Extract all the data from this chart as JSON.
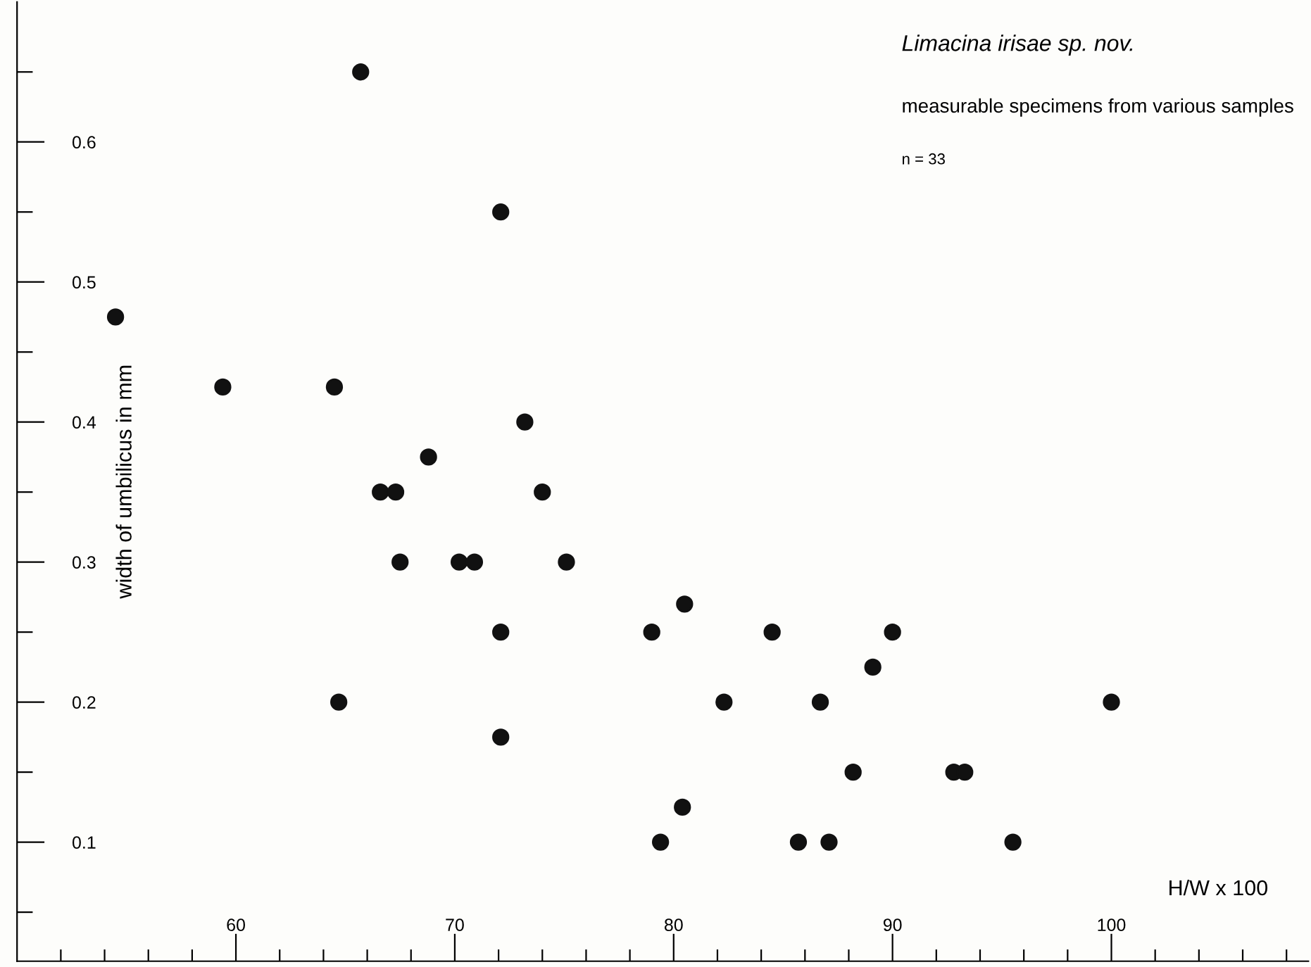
{
  "chart_data": {
    "type": "scatter",
    "title": "Limacina irisae sp. nov.",
    "annotations": [
      "measurable specimens from various samples",
      "n = 33"
    ],
    "xlabel": "H/W x 100",
    "ylabel": "width of umbilicus in mm",
    "x": [
      54.5,
      59.4,
      64.5,
      64.7,
      65.7,
      66.6,
      67.3,
      67.5,
      68.8,
      70.2,
      70.9,
      72.1,
      72.1,
      72.1,
      73.2,
      74.0,
      75.1,
      79.0,
      79.4,
      80.5,
      80.4,
      82.3,
      84.5,
      85.7,
      86.7,
      87.1,
      88.2,
      89.1,
      90.0,
      92.8,
      93.3,
      95.5,
      100.0
    ],
    "values": [
      0.475,
      0.425,
      0.425,
      0.2,
      0.65,
      0.35,
      0.35,
      0.3,
      0.375,
      0.3,
      0.3,
      0.55,
      0.25,
      0.175,
      0.4,
      0.35,
      0.3,
      0.25,
      0.1,
      0.27,
      0.125,
      0.2,
      0.25,
      0.1,
      0.2,
      0.1,
      0.15,
      0.225,
      0.25,
      0.15,
      0.15,
      0.1,
      0.2
    ],
    "color": "#111111",
    "marker": "circle",
    "grid": false,
    "legend": false,
    "xlim": [
      50,
      109
    ],
    "ylim": [
      0.015,
      0.7
    ],
    "xticks": [
      {
        "value": 52,
        "label": null
      },
      {
        "value": 54,
        "label": null
      },
      {
        "value": 56,
        "label": null
      },
      {
        "value": 58,
        "label": null
      },
      60,
      {
        "value": 62,
        "label": null
      },
      {
        "value": 64,
        "label": null
      },
      {
        "value": 66,
        "label": null
      },
      {
        "value": 68,
        "label": null
      },
      70,
      {
        "value": 72,
        "label": null
      },
      {
        "value": 74,
        "label": null
      },
      {
        "value": 76,
        "label": null
      },
      {
        "value": 78,
        "label": null
      },
      80,
      {
        "value": 82,
        "label": null
      },
      {
        "value": 84,
        "label": null
      },
      {
        "value": 86,
        "label": null
      },
      {
        "value": 88,
        "label": null
      },
      90,
      {
        "value": 92,
        "label": null
      },
      {
        "value": 94,
        "label": null
      },
      {
        "value": 96,
        "label": null
      },
      {
        "value": 98,
        "label": null
      },
      100,
      {
        "value": 102,
        "label": null
      },
      {
        "value": 104,
        "label": null
      },
      {
        "value": 106,
        "label": null
      },
      {
        "value": 108,
        "label": null
      }
    ],
    "yticks": [
      {
        "value": 0.05,
        "label": null
      },
      0.1,
      {
        "value": 0.15,
        "label": null
      },
      0.2,
      {
        "value": 0.25,
        "label": null
      },
      0.3,
      {
        "value": 0.35,
        "label": null
      },
      0.4,
      {
        "value": 0.45,
        "label": null
      },
      0.5,
      {
        "value": 0.55,
        "label": null
      },
      0.6,
      {
        "value": 0.65,
        "label": null
      }
    ]
  }
}
